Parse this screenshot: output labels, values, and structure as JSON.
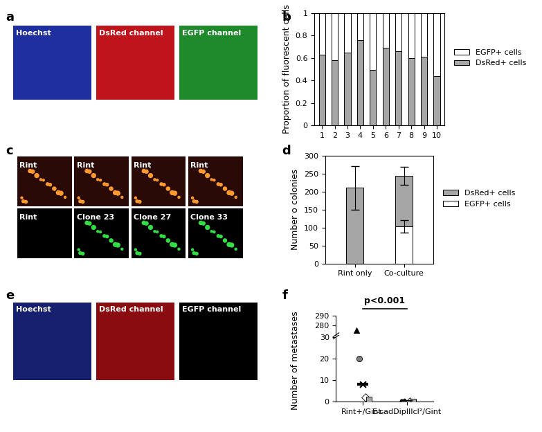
{
  "panel_labels": [
    "a",
    "b",
    "c",
    "d",
    "e",
    "f"
  ],
  "micrographs": {
    "a": {
      "tiles": [
        {
          "label": "Hoechst",
          "color": "#1f2fa0"
        },
        {
          "label": "DsRed channel",
          "color": "#c0141c"
        },
        {
          "label": "EGFP channel",
          "color": "#1e8a2c"
        }
      ]
    },
    "c": {
      "rows": [
        [
          {
            "label": "Rint",
            "color": "#2a0a06",
            "dots": "#ff9a30"
          },
          {
            "label": "Rint",
            "color": "#2a0a06",
            "dots": "#ff9a30"
          },
          {
            "label": "Rint",
            "color": "#2a0a06",
            "dots": "#ff9a30"
          },
          {
            "label": "Rint",
            "color": "#2a0a06",
            "dots": "#ff9a30"
          }
        ],
        [
          {
            "label": "Rint",
            "color": "#000000"
          },
          {
            "label": "Clone 23",
            "color": "#000000",
            "dots": "#33dd44"
          },
          {
            "label": "Clone 27",
            "color": "#000000",
            "dots": "#33dd44"
          },
          {
            "label": "Clone 33",
            "color": "#000000",
            "dots": "#33dd44"
          }
        ]
      ]
    },
    "e": {
      "tiles": [
        {
          "label": "Hoechst",
          "color": "#16206e"
        },
        {
          "label": "DsRed channel",
          "color": "#8a0c10"
        },
        {
          "label": "EGFP channel",
          "color": "#000000"
        }
      ]
    }
  },
  "chart_data": [
    {
      "type": "bar",
      "stacked": true,
      "ylabel": "Proportion of fluorescent cells",
      "categories": [
        "1",
        "2",
        "3",
        "4",
        "5",
        "6",
        "7",
        "8",
        "9",
        "10"
      ],
      "series": [
        {
          "name": "DsRed+ cells",
          "color": "#a6a6a6",
          "values": [
            0.63,
            0.58,
            0.65,
            0.76,
            0.49,
            0.69,
            0.66,
            0.6,
            0.61,
            0.44
          ]
        },
        {
          "name": "EGFP+ cells",
          "color": "#ffffff",
          "values": [
            0.37,
            0.42,
            0.35,
            0.24,
            0.51,
            0.31,
            0.34,
            0.4,
            0.39,
            0.56
          ]
        }
      ],
      "legend_order": [
        "EGFP+ cells",
        "DsRed+ cells"
      ],
      "ylim": [
        0,
        1
      ],
      "yticks": [
        0,
        0.2,
        0.4,
        0.6,
        0.8,
        1
      ],
      "legend": "center left"
    },
    {
      "type": "bar",
      "stacked": true,
      "ylabel": "Number o colonies",
      "categories": [
        "Rint only",
        "Co-culture"
      ],
      "series": [
        {
          "name": "EGFP+ cells",
          "color": "#ffffff",
          "values": [
            0,
            103
          ],
          "error": [
            null,
            18
          ]
        },
        {
          "name": "DsRed+ cells",
          "color": "#a6a6a6",
          "values": [
            210,
            140
          ],
          "error": [
            60,
            25
          ]
        }
      ],
      "legend_order": [
        "DsRed+ cells",
        "EGFP+ cells"
      ],
      "ylim": [
        0,
        300
      ],
      "yticks": [
        0,
        50,
        100,
        150,
        200,
        250,
        300
      ],
      "legend": "center left"
    },
    {
      "type": "scatter",
      "ylabel": "Number of metastases",
      "categories": [
        "Rint+/Gint-",
        "E-cadDipIIIcl²/Gint"
      ],
      "series": [
        {
          "marker": "triangle",
          "color": "#000000",
          "values": [
            275,
            0
          ]
        },
        {
          "marker": "circle",
          "color": "#808080",
          "values": [
            20,
            0
          ]
        },
        {
          "marker": "x",
          "color": "#000000",
          "values": [
            8,
            0
          ]
        },
        {
          "marker": "diamond",
          "color": "#ffffff",
          "values": [
            2,
            0
          ]
        },
        {
          "marker": "square",
          "color": "#a6a6a6",
          "values": [
            1,
            0
          ]
        }
      ],
      "median": [
        8,
        0
      ],
      "annotation": "p<0.001",
      "segments": [
        {
          "ylim": [
            0,
            30
          ],
          "yticks": [
            0,
            10,
            20,
            30
          ]
        },
        {
          "ylim": [
            270,
            290
          ],
          "yticks": [
            280,
            290
          ]
        }
      ]
    }
  ]
}
